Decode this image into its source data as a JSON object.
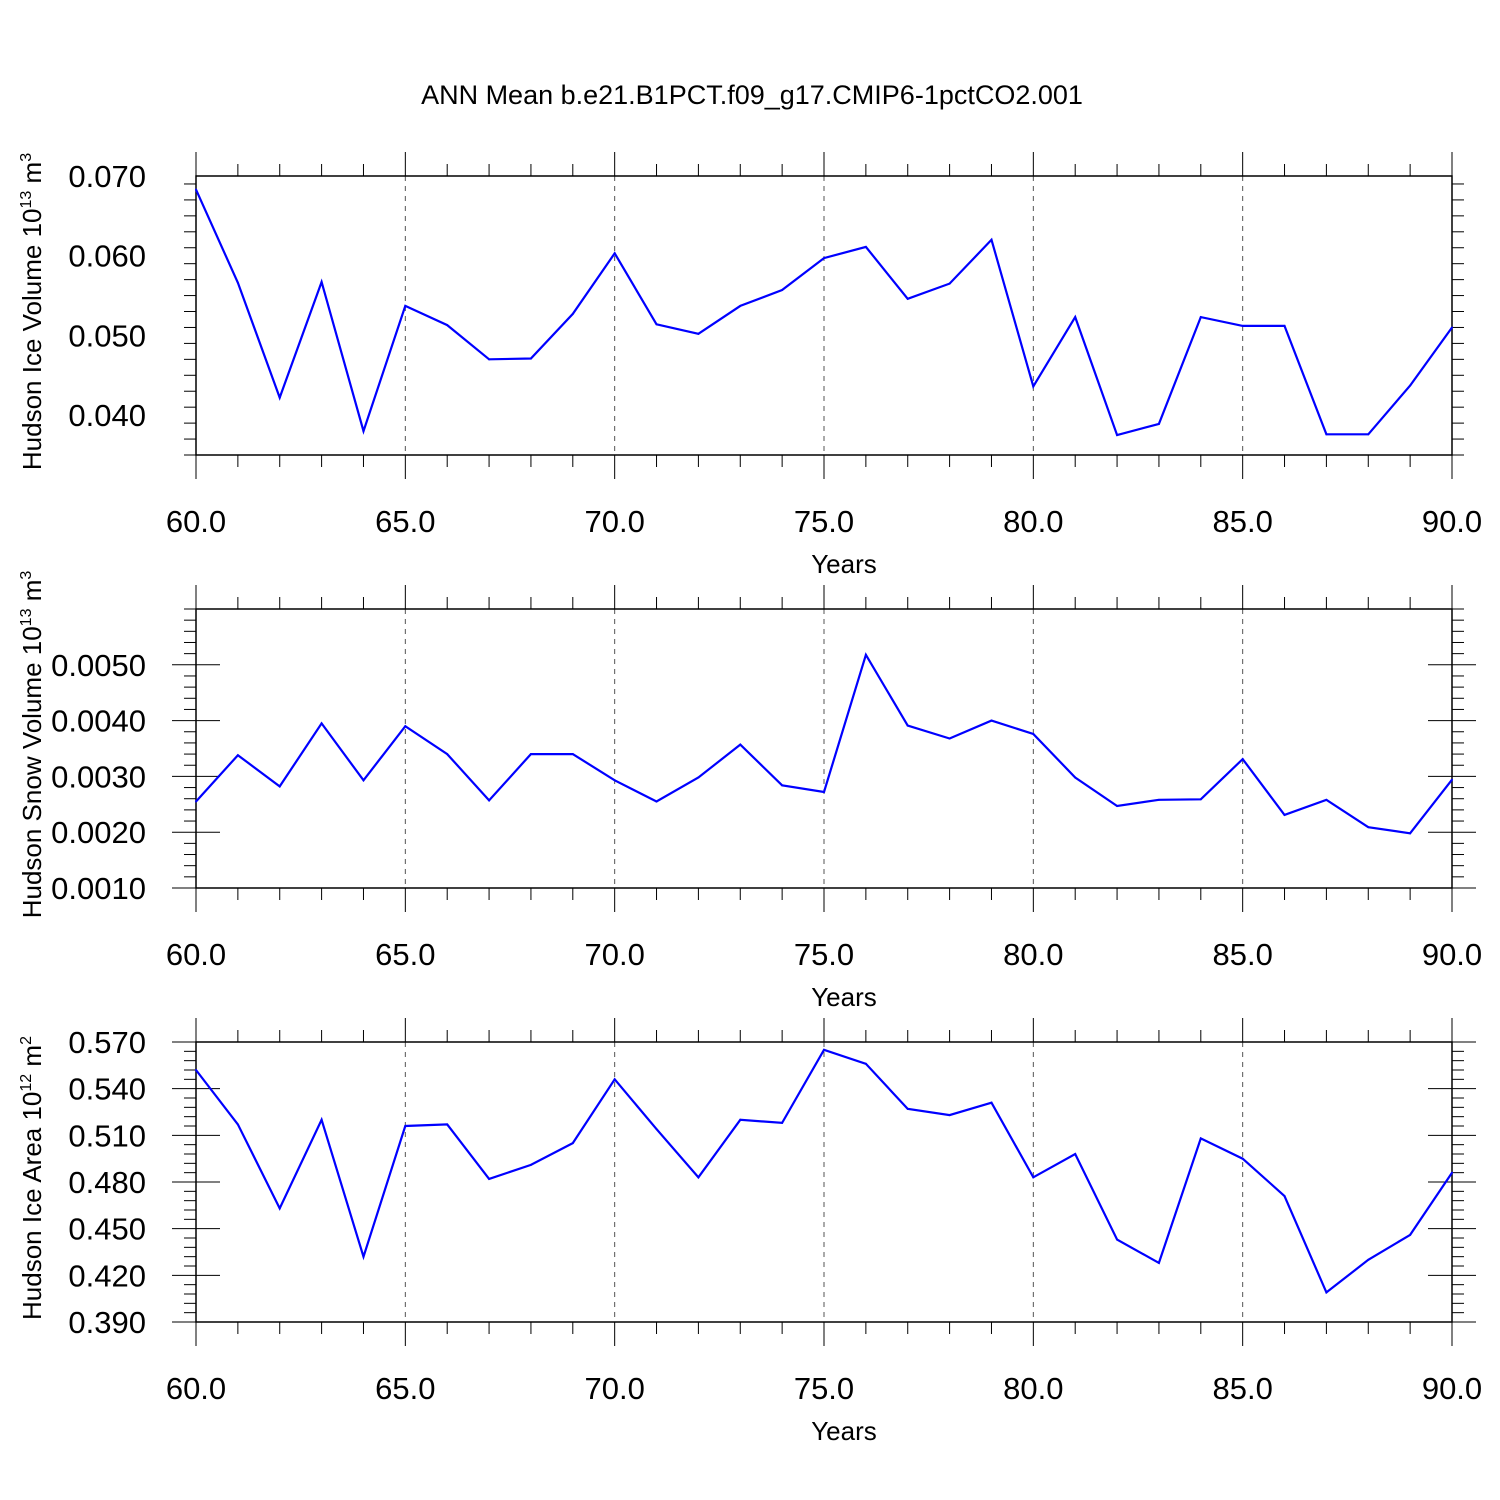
{
  "figure_title": "ANN Mean b.e21.B1PCT.f09_g17.CMIP6-1pctCO2.001",
  "colors": {
    "line": "#0000ff",
    "axis": "#000000",
    "grid": "#555555"
  },
  "chart_data": [
    {
      "type": "line",
      "title": "ANN Mean b.e21.B1PCT.f09_g17.CMIP6-1pctCO2.001",
      "xlabel": "Years",
      "ylabel": {
        "text": "Hudson Ice Volume 10",
        "sup1": "13",
        "unit": " m",
        "sup2": "3"
      },
      "xlim": [
        60,
        90
      ],
      "ylim": [
        0.035,
        0.07
      ],
      "grid": "x-dashed",
      "xticks": [
        "60.0",
        "65.0",
        "70.0",
        "75.0",
        "80.0",
        "85.0",
        "90.0"
      ],
      "yticks": [
        "0.040",
        "0.050",
        "0.060",
        "0.070"
      ],
      "series": [
        {
          "x": [
            60,
            61,
            62,
            63,
            64,
            65,
            66,
            67,
            68,
            69,
            70,
            71,
            72,
            73,
            74,
            75,
            76,
            77,
            78,
            79,
            80,
            81,
            82,
            83,
            84,
            85,
            86,
            87,
            88,
            89,
            90
          ],
          "values": [
            0.0683,
            0.0566,
            0.0422,
            0.0567,
            0.038,
            0.0537,
            0.0513,
            0.047,
            0.0471,
            0.0527,
            0.0603,
            0.0514,
            0.0502,
            0.0537,
            0.0557,
            0.0597,
            0.0611,
            0.0546,
            0.0565,
            0.062,
            0.0436,
            0.0523,
            0.0375,
            0.0389,
            0.0523,
            0.0512,
            0.0512,
            0.0376,
            0.0376,
            0.0437,
            0.051
          ]
        }
      ]
    },
    {
      "type": "line",
      "xlabel": "Years",
      "ylabel": {
        "text": "Hudson Snow Volume 10",
        "sup1": "13",
        "unit": " m",
        "sup2": "3"
      },
      "xlim": [
        60,
        90
      ],
      "ylim": [
        0.001,
        0.006
      ],
      "grid": "x-dashed",
      "xticks": [
        "60.0",
        "65.0",
        "70.0",
        "75.0",
        "80.0",
        "85.0",
        "90.0"
      ],
      "yticks": [
        "0.0010",
        "0.0020",
        "0.0030",
        "0.0040",
        "0.0050"
      ],
      "series": [
        {
          "x": [
            60,
            61,
            62,
            63,
            64,
            65,
            66,
            67,
            68,
            69,
            70,
            71,
            72,
            73,
            74,
            75,
            76,
            77,
            78,
            79,
            80,
            81,
            82,
            83,
            84,
            85,
            86,
            87,
            88,
            89,
            90
          ],
          "values": [
            0.00255,
            0.00338,
            0.00282,
            0.00395,
            0.00293,
            0.0039,
            0.0034,
            0.00257,
            0.0034,
            0.0034,
            0.00293,
            0.00255,
            0.00298,
            0.00357,
            0.00284,
            0.00272,
            0.00518,
            0.00391,
            0.00368,
            0.004,
            0.00376,
            0.00298,
            0.00247,
            0.00258,
            0.00259,
            0.00331,
            0.00231,
            0.00258,
            0.00209,
            0.00198,
            0.00294
          ]
        }
      ]
    },
    {
      "type": "line",
      "xlabel": "Years",
      "ylabel": {
        "text": "Hudson Ice Area 10",
        "sup1": "12",
        "unit": " m",
        "sup2": "2"
      },
      "xlim": [
        60,
        90
      ],
      "ylim": [
        0.39,
        0.57
      ],
      "grid": "x-dashed",
      "xticks": [
        "60.0",
        "65.0",
        "70.0",
        "75.0",
        "80.0",
        "85.0",
        "90.0"
      ],
      "yticks": [
        "0.390",
        "0.420",
        "0.450",
        "0.480",
        "0.510",
        "0.540",
        "0.570"
      ],
      "series": [
        {
          "x": [
            60,
            61,
            62,
            63,
            64,
            65,
            66,
            67,
            68,
            69,
            70,
            71,
            72,
            73,
            74,
            75,
            76,
            77,
            78,
            79,
            80,
            81,
            82,
            83,
            84,
            85,
            86,
            87,
            88,
            89,
            90
          ],
          "values": [
            0.552,
            0.517,
            0.463,
            0.52,
            0.432,
            0.516,
            0.517,
            0.482,
            0.491,
            0.505,
            0.546,
            0.514,
            0.483,
            0.52,
            0.518,
            0.565,
            0.556,
            0.527,
            0.523,
            0.531,
            0.483,
            0.498,
            0.443,
            0.428,
            0.508,
            0.495,
            0.471,
            0.409,
            0.43,
            0.446,
            0.486
          ]
        }
      ]
    }
  ]
}
